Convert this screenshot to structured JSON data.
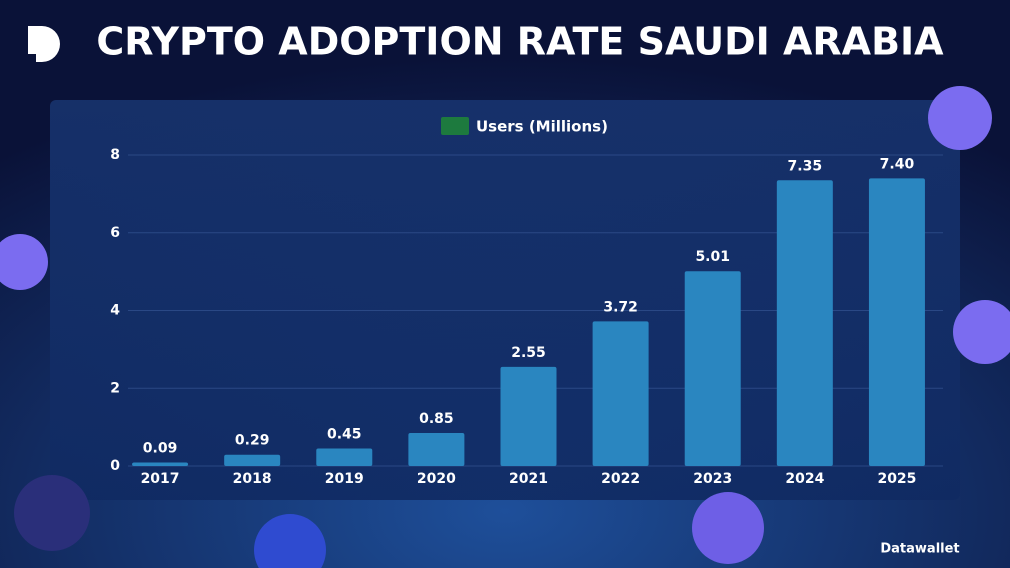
{
  "chart_data": {
    "type": "bar",
    "title": "CRYPTO ADOPTION RATE SAUDI ARABIA",
    "series_name": "Users (Millions)",
    "categories": [
      "2017",
      "2018",
      "2019",
      "2020",
      "2021",
      "2022",
      "2023",
      "2024",
      "2025"
    ],
    "values": [
      0.09,
      0.29,
      0.45,
      0.85,
      2.55,
      3.72,
      5.01,
      7.35,
      7.4
    ],
    "value_labels": [
      "0.09",
      "0.29",
      "0.45",
      "0.85",
      "2.55",
      "3.72",
      "5.01",
      "7.35",
      "7.40"
    ],
    "color": "#2a86c0",
    "ylim": [
      0,
      8
    ],
    "yticks": [
      0,
      2,
      4,
      6,
      8
    ],
    "grid": true
  },
  "brand": "Datawallet"
}
